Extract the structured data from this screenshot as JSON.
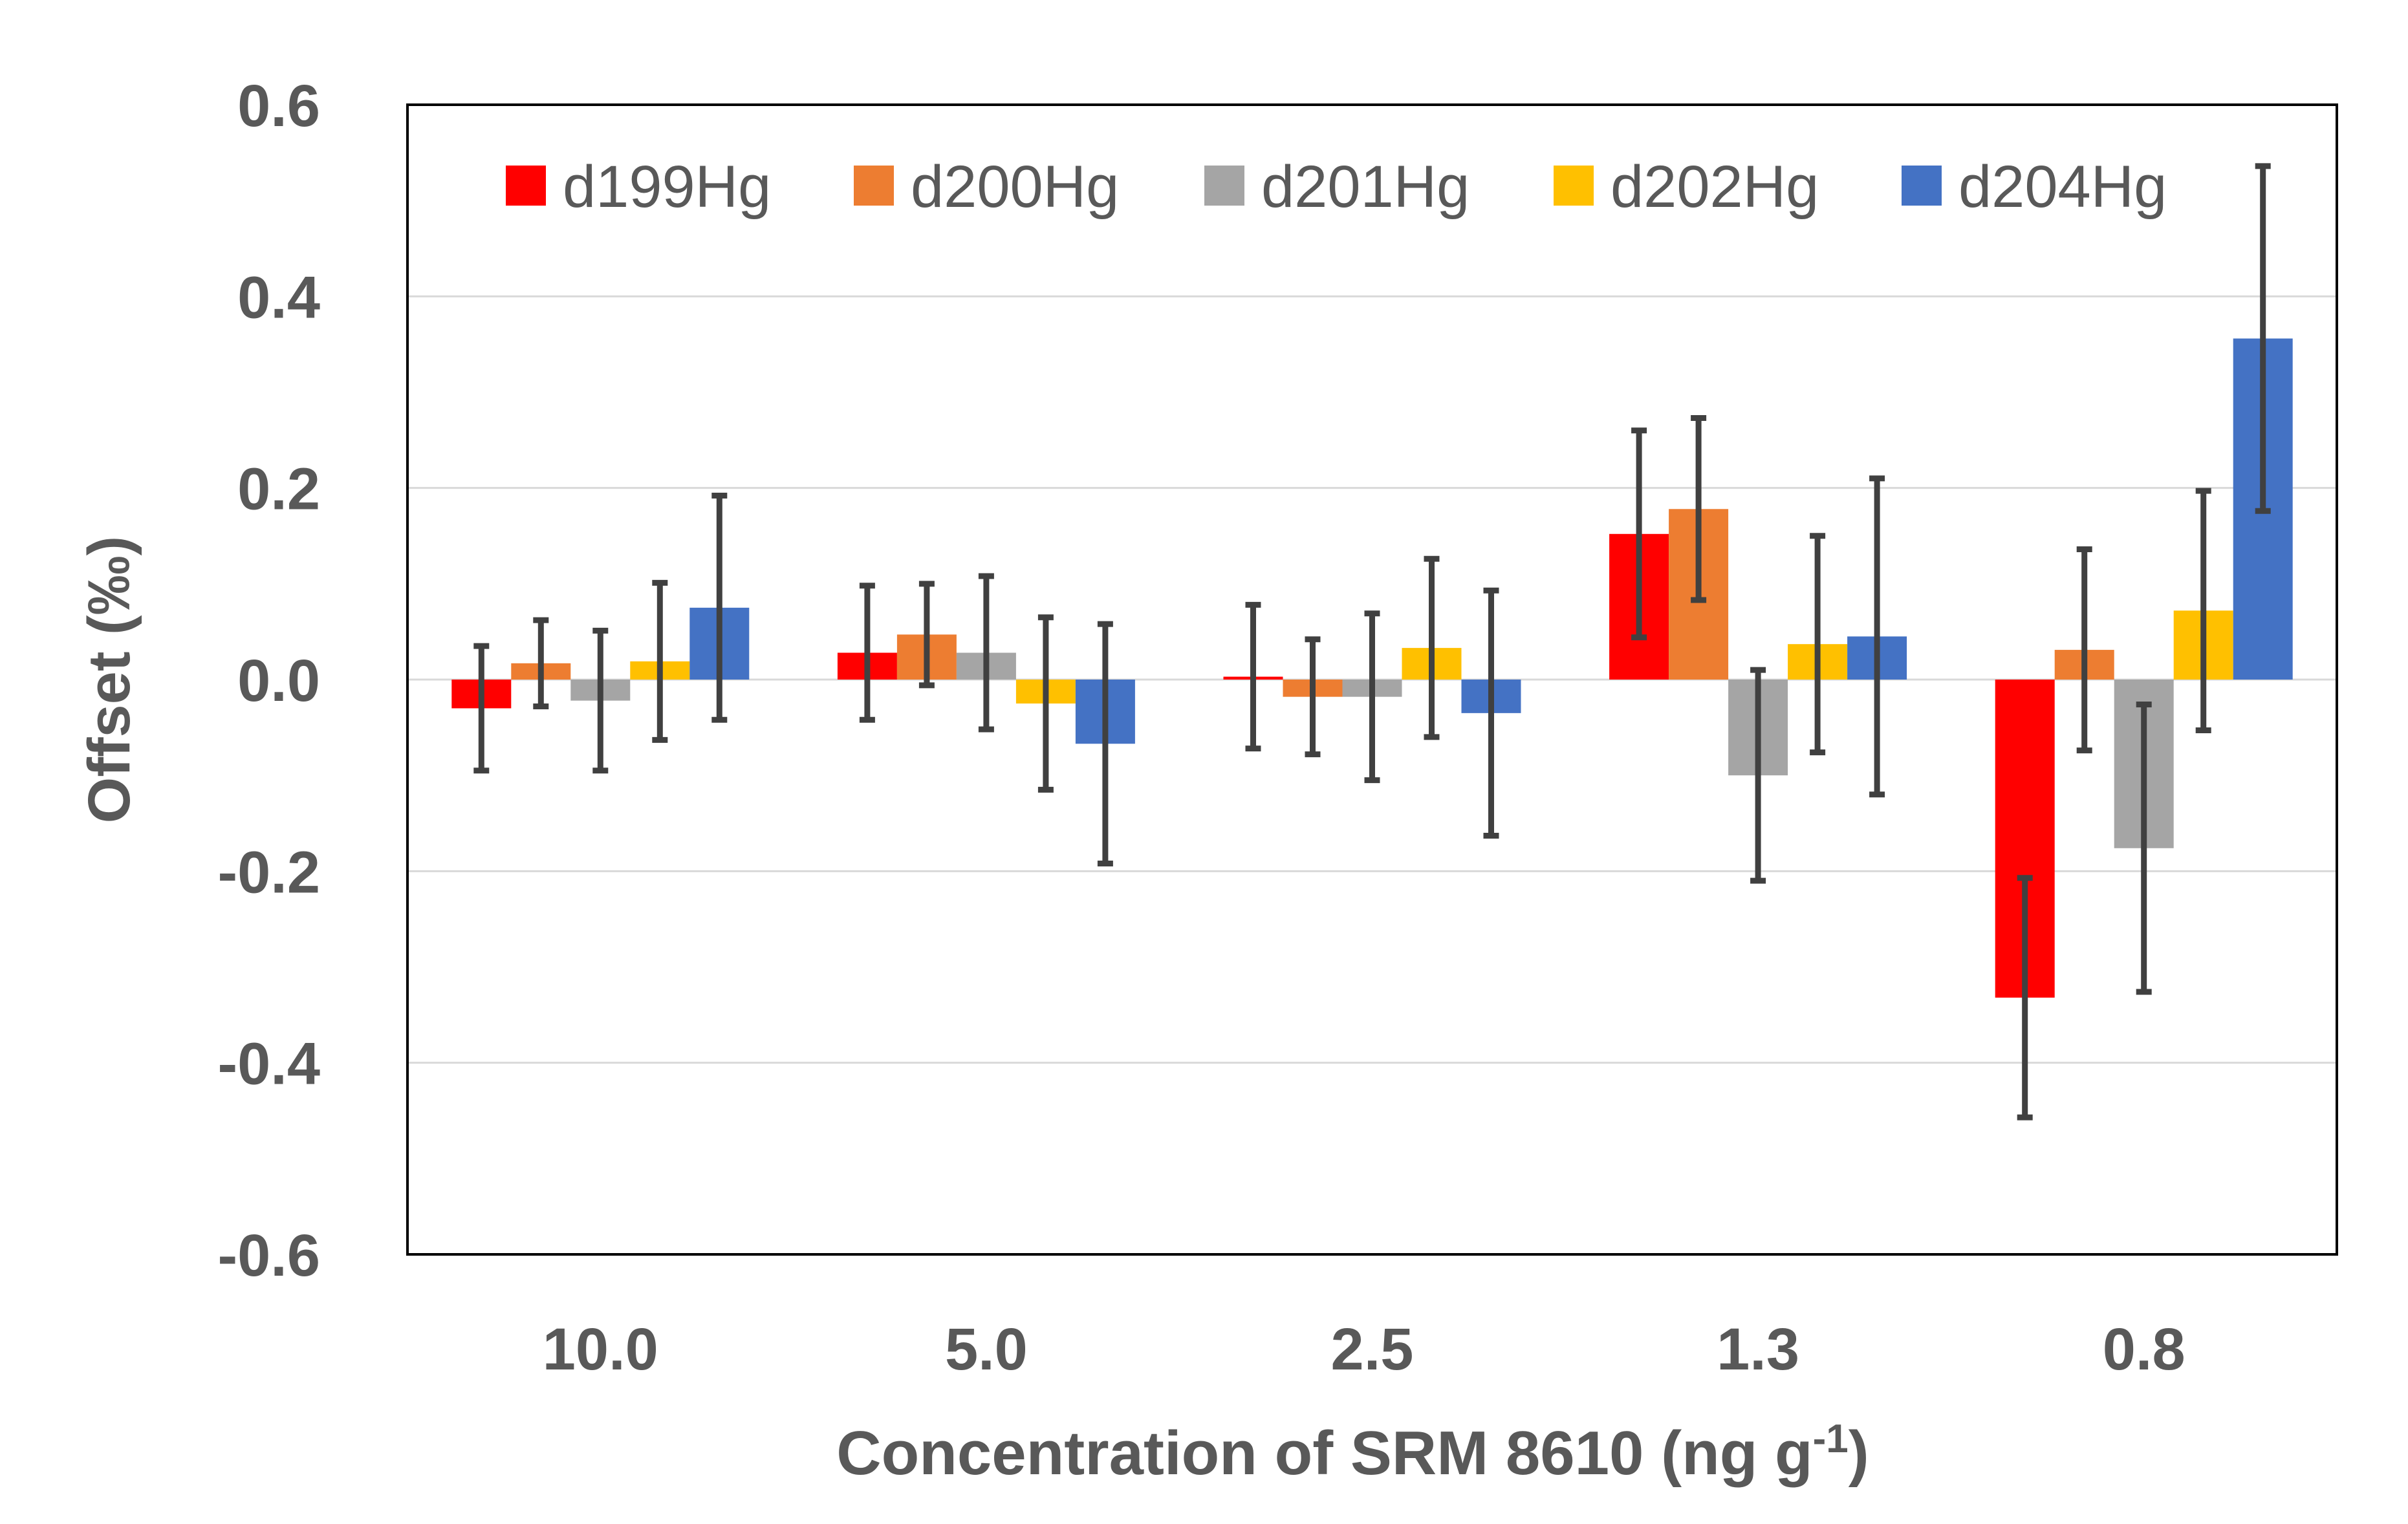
{
  "chart_data": {
    "type": "bar",
    "title": "",
    "xlabel": "Concentration of SRM 8610 (ng g-1)",
    "xlabel_parts": {
      "main": "Concentration of SRM 8610 (ng g",
      "superscript": "-1",
      "closing": ")"
    },
    "ylabel": "Offset (‰)",
    "ylim": [
      -0.6,
      0.6
    ],
    "yticks": [
      0.6,
      0.4,
      0.2,
      0.0,
      -0.2,
      -0.4,
      -0.6
    ],
    "ytick_labels": [
      "0.6",
      "0.4",
      "0.2",
      "0.0",
      "-0.2",
      "-0.4",
      "-0.6"
    ],
    "grid": true,
    "legend_position": "top",
    "categories": [
      "10.0",
      "5.0",
      "2.5",
      "1.3",
      "0.8"
    ],
    "series": [
      {
        "name": "d199Hg",
        "color": "#FF0000",
        "values": [
          -0.03,
          0.028,
          0.003,
          0.152,
          -0.332
        ],
        "errors": [
          0.065,
          0.07,
          0.075,
          0.108,
          0.125
        ]
      },
      {
        "name": "d200Hg",
        "color": "#ED7D31",
        "values": [
          0.017,
          0.047,
          -0.018,
          0.178,
          0.031
        ],
        "errors": [
          0.045,
          0.053,
          0.06,
          0.095,
          0.105
        ]
      },
      {
        "name": "d201Hg",
        "color": "#A5A5A5",
        "values": [
          -0.022,
          0.028,
          -0.018,
          -0.1,
          -0.176
        ],
        "errors": [
          0.073,
          0.08,
          0.087,
          0.11,
          0.15
        ]
      },
      {
        "name": "d202Hg",
        "color": "#FFC000",
        "values": [
          0.019,
          -0.025,
          0.033,
          0.037,
          0.072
        ],
        "errors": [
          0.082,
          0.09,
          0.093,
          0.113,
          0.125
        ]
      },
      {
        "name": "d204Hg",
        "color": "#4472C4",
        "values": [
          0.075,
          -0.067,
          -0.035,
          0.045,
          0.356
        ],
        "errors": [
          0.117,
          0.125,
          0.128,
          0.165,
          0.18
        ]
      }
    ]
  }
}
